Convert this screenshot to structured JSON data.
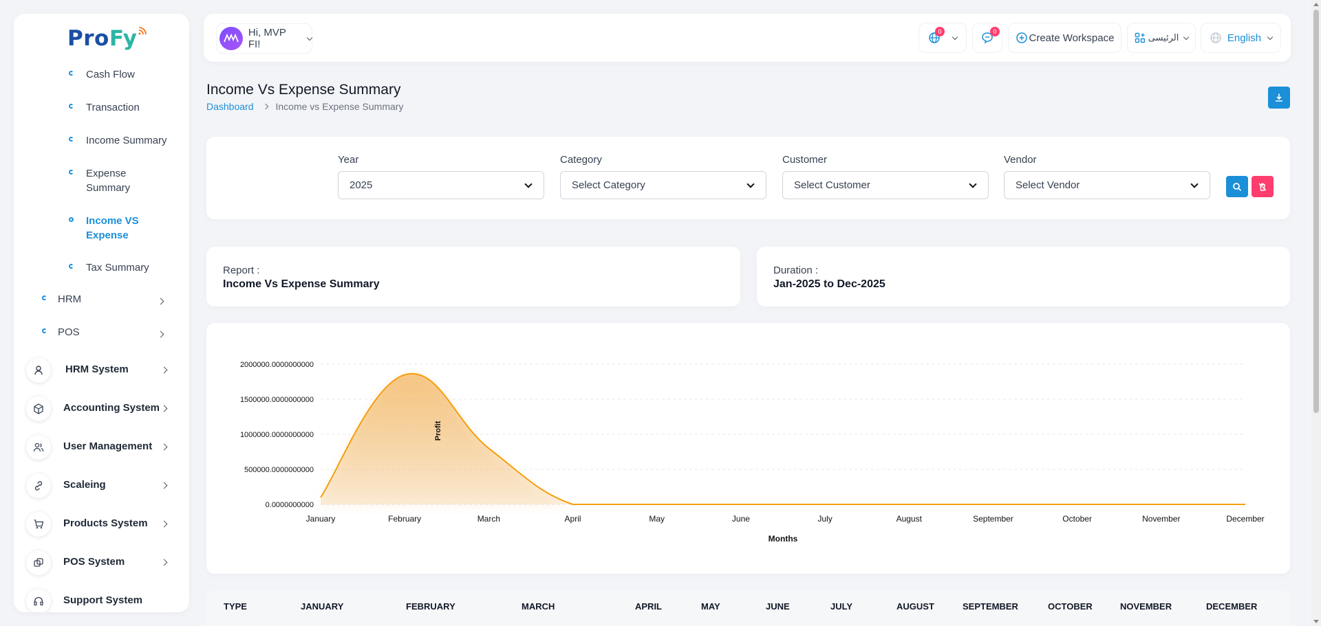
{
  "brand": {
    "part1": "Pro",
    "part2": "Fy"
  },
  "sidebar": {
    "sub_items": [
      {
        "label": "Cash Flow"
      },
      {
        "label": "Transaction"
      },
      {
        "label": "Income Summary"
      },
      {
        "label": "Expense Summary"
      },
      {
        "label": "Income VS Expense",
        "active": true
      },
      {
        "label": "Tax Summary"
      }
    ],
    "mid_items": [
      {
        "label": "HRM"
      },
      {
        "label": "POS"
      }
    ],
    "main_items": [
      {
        "label": "HRM System",
        "icon": "user-icon"
      },
      {
        "label": "Accounting System",
        "icon": "box-icon"
      },
      {
        "label": "User Management",
        "icon": "users-icon"
      },
      {
        "label": "Scaleing",
        "icon": "link-icon"
      },
      {
        "label": "Products System",
        "icon": "cart-icon"
      },
      {
        "label": "POS System",
        "icon": "layers-icon"
      },
      {
        "label": "Support System",
        "icon": "headset-icon"
      }
    ]
  },
  "topbar": {
    "greeting": "Hi, MVP FI!",
    "globe_badge": "0",
    "chat_badge": "0",
    "create_workspace": "Create Workspace",
    "workspace_switch": "الرئيسى",
    "language": "English"
  },
  "header": {
    "title": "Income Vs Expense Summary",
    "breadcrumb_home": "Dashboard",
    "breadcrumb_current": "Income vs Expense Summary"
  },
  "filters": {
    "year": {
      "label": "Year",
      "value": "2025"
    },
    "category": {
      "label": "Category",
      "value": "Select Category"
    },
    "customer": {
      "label": "Customer",
      "value": "Select Customer"
    },
    "vendor": {
      "label": "Vendor",
      "value": "Select Vendor"
    }
  },
  "report": {
    "report_label": "Report :",
    "report_value": "Income Vs Expense Summary",
    "duration_label": "Duration :",
    "duration_value": "Jan-2025 to Dec-2025"
  },
  "chart_data": {
    "type": "area",
    "categories": [
      "January",
      "February",
      "March",
      "April",
      "May",
      "June",
      "July",
      "August",
      "September",
      "October",
      "November",
      "December"
    ],
    "series": [
      {
        "values": [
          100000,
          1850000,
          800000,
          0,
          0,
          0,
          0,
          0,
          0,
          0,
          0,
          0
        ]
      }
    ],
    "xlabel": "Months",
    "ylabel": "Profit",
    "y_ticks": [
      "0.0000000000",
      "500000.0000000000",
      "1000000.0000000000",
      "1500000.0000000000",
      "2000000.0000000000"
    ],
    "ylim": [
      0,
      2000000
    ],
    "grid": true,
    "color": "#f59e0b"
  },
  "table": {
    "headers": [
      "TYPE",
      "JANUARY",
      "FEBRUARY",
      "MARCH",
      "APRIL",
      "MAY",
      "JUNE",
      "JULY",
      "AUGUST",
      "SEPTEMBER",
      "OCTOBER",
      "NOVEMBER",
      "DECEMBER"
    ]
  }
}
